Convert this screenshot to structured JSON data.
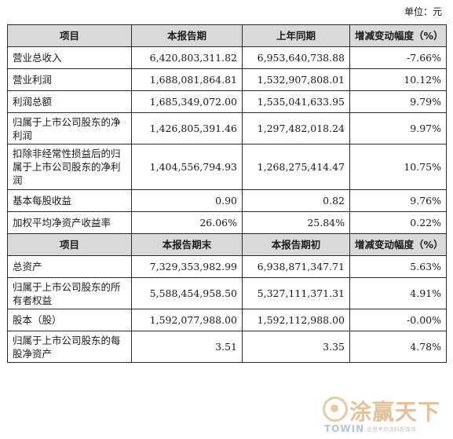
{
  "unit_label": "单位：元",
  "section1": {
    "headers": [
      "项目",
      "本报告期",
      "上年同期",
      "增减变动幅度（%）"
    ],
    "rows": [
      {
        "item": "营业总收入",
        "cur": "6,420,803,311.82",
        "prev": "6,953,640,738.88",
        "chg": "-7.66%"
      },
      {
        "item": "营业利润",
        "cur": "1,688,081,864.81",
        "prev": "1,532,907,808.01",
        "chg": "10.12%"
      },
      {
        "item": "利润总额",
        "cur": "1,685,349,072.00",
        "prev": "1,535,041,633.95",
        "chg": "9.79%"
      },
      {
        "item": "归属于上市公司股东的净利润",
        "cur": "1,426,805,391.46",
        "prev": "1,297,482,018.24",
        "chg": "9.97%"
      },
      {
        "item": "扣除非经常性损益后的归属于上市公司股东的净利润",
        "cur": "1,404,556,794.93",
        "prev": "1,268,275,414.47",
        "chg": "10.75%"
      },
      {
        "item": "基本每股收益",
        "cur": "0.90",
        "prev": "0.82",
        "chg": "9.76%"
      },
      {
        "item": "加权平均净资产收益率",
        "cur": "26.06%",
        "prev": "25.84%",
        "chg": "0.22%"
      }
    ]
  },
  "section2": {
    "headers": [
      "项目",
      "本报告期末",
      "本报告期初",
      "增减变动幅度（%）"
    ],
    "rows": [
      {
        "item": "总资产",
        "cur": "7,329,353,982.99",
        "prev": "6,938,871,347.71",
        "chg": "5.63%"
      },
      {
        "item": "归属于上市公司股东的所有者权益",
        "cur": "5,588,454,958.50",
        "prev": "5,327,111,371.31",
        "chg": "4.91%"
      },
      {
        "item": "股本（股）",
        "cur": "1,592,077,988.00",
        "prev": "1,592,112,988.00",
        "chg": "-0.00%"
      },
      {
        "item": "归属于上市公司股东的每股净资产",
        "cur": "3.51",
        "prev": "3.35",
        "chg": "4.78%"
      }
    ]
  },
  "watermark": {
    "cn": "涂赢天下",
    "en": "TOWIN",
    "sub": "会思考的涂料新媒体"
  },
  "colors": {
    "header_bg": "#d9d9d9",
    "border": "#2a2a2a",
    "watermark": "#e3c29a"
  }
}
